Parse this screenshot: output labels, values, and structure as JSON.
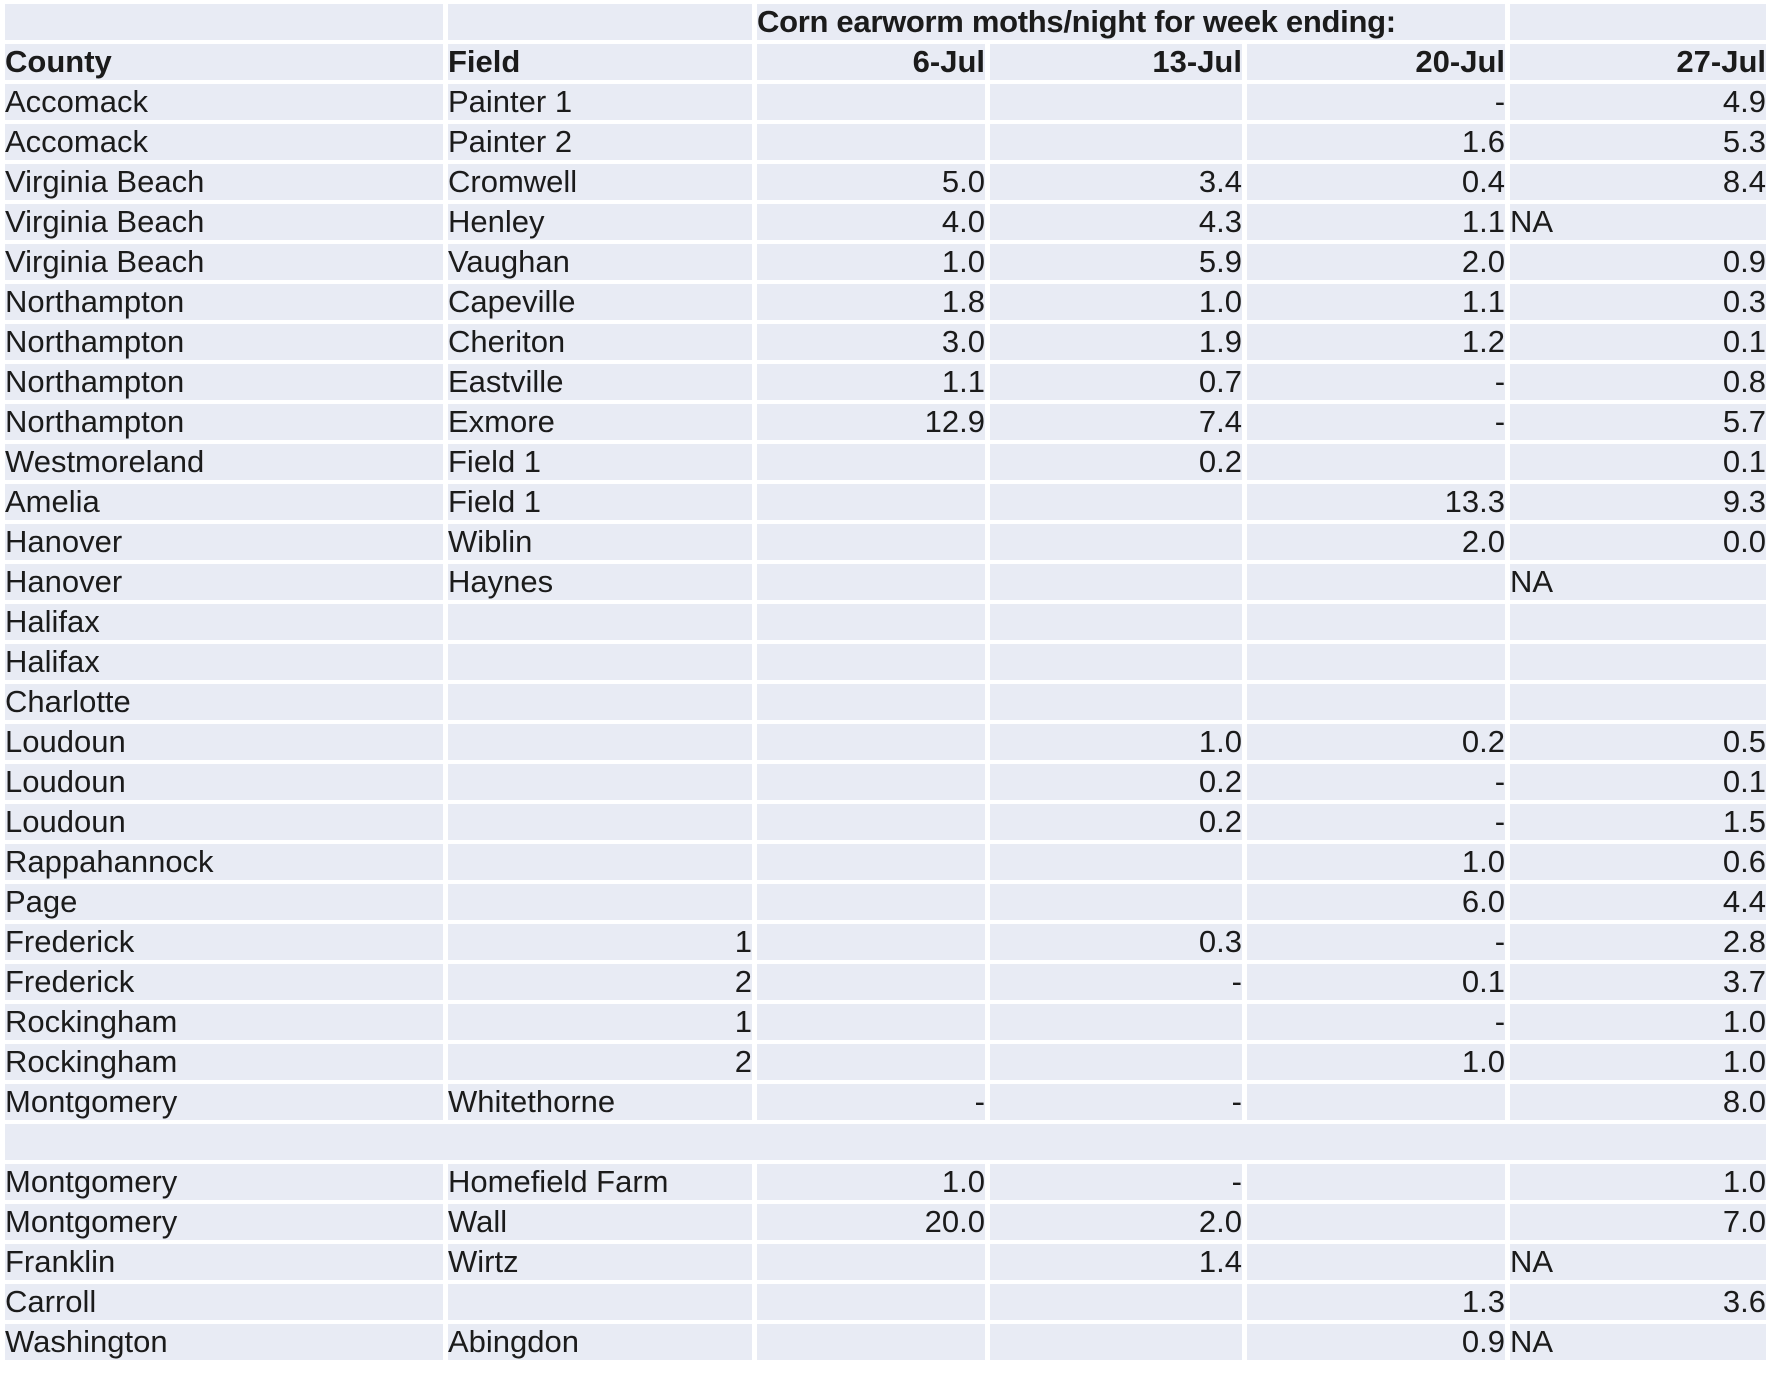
{
  "title": "Corn earworm moths/night for week ending:",
  "header": {
    "county_label": "County",
    "field_label": "Field",
    "date_labels": [
      "6-Jul",
      "13-Jul",
      "20-Jul",
      "27-Jul"
    ]
  },
  "colors": {
    "cell_background": "#e8ebf4",
    "gridline": "#ffffff",
    "text": "#1b1b1b"
  },
  "rows": [
    {
      "county": "Accomack",
      "field": "Painter 1",
      "vals": [
        "",
        "",
        "-",
        "4.9"
      ]
    },
    {
      "county": "Accomack",
      "field": "Painter 2",
      "vals": [
        "",
        "",
        "1.6",
        "5.3"
      ]
    },
    {
      "county": "Virginia Beach",
      "field": "Cromwell",
      "vals": [
        "5.0",
        "3.4",
        "0.4",
        "8.4"
      ]
    },
    {
      "county": "Virginia Beach",
      "field": "Henley",
      "vals": [
        "4.0",
        "4.3",
        "1.1",
        "NA"
      ]
    },
    {
      "county": "Virginia Beach",
      "field": "Vaughan",
      "vals": [
        "1.0",
        "5.9",
        "2.0",
        "0.9"
      ]
    },
    {
      "county": "Northampton",
      "field": "Capeville",
      "vals": [
        "1.8",
        "1.0",
        "1.1",
        "0.3"
      ]
    },
    {
      "county": "Northampton",
      "field": "Cheriton",
      "vals": [
        "3.0",
        "1.9",
        "1.2",
        "0.1"
      ]
    },
    {
      "county": "Northampton",
      "field": "Eastville",
      "vals": [
        "1.1",
        "0.7",
        "-",
        "0.8"
      ]
    },
    {
      "county": "Northampton",
      "field": "Exmore",
      "vals": [
        "12.9",
        "7.4",
        "-",
        "5.7"
      ]
    },
    {
      "county": "Westmoreland",
      "field": "Field 1",
      "vals": [
        "",
        "0.2",
        "",
        "0.1"
      ]
    },
    {
      "county": "Amelia",
      "field": "Field 1",
      "vals": [
        "",
        "",
        "13.3",
        "9.3"
      ]
    },
    {
      "county": "Hanover",
      "field": "Wiblin",
      "vals": [
        "",
        "",
        "2.0",
        "0.0"
      ]
    },
    {
      "county": "Hanover",
      "field": "Haynes",
      "vals": [
        "",
        "",
        "",
        "NA"
      ]
    },
    {
      "county": "Halifax",
      "field": "",
      "vals": [
        "",
        "",
        "",
        ""
      ]
    },
    {
      "county": "Halifax",
      "field": "",
      "vals": [
        "",
        "",
        "",
        ""
      ]
    },
    {
      "county": "Charlotte",
      "field": "",
      "vals": [
        "",
        "",
        "",
        ""
      ]
    },
    {
      "county": "Loudoun",
      "field": "",
      "vals": [
        "",
        "1.0",
        "0.2",
        "0.5"
      ]
    },
    {
      "county": "Loudoun",
      "field": "",
      "vals": [
        "",
        "0.2",
        "-",
        "0.1"
      ]
    },
    {
      "county": "Loudoun",
      "field": "",
      "vals": [
        "",
        "0.2",
        "-",
        "1.5"
      ]
    },
    {
      "county": "Rappahannock",
      "field": "",
      "vals": [
        "",
        "",
        "1.0",
        "0.6"
      ]
    },
    {
      "county": "Page",
      "field": "",
      "vals": [
        "",
        "",
        "6.0",
        "4.4"
      ]
    },
    {
      "county": "Frederick",
      "field": "1",
      "vals": [
        "",
        "0.3",
        "-",
        "2.8"
      ]
    },
    {
      "county": "Frederick",
      "field": "2",
      "vals": [
        "",
        "-",
        "0.1",
        "3.7"
      ]
    },
    {
      "county": "Rockingham",
      "field": "1",
      "vals": [
        "",
        "",
        "-",
        "1.0"
      ]
    },
    {
      "county": "Rockingham",
      "field": "2",
      "vals": [
        "",
        "",
        "1.0",
        "1.0"
      ]
    },
    {
      "county": "Montgomery",
      "field": "Whitethorne",
      "vals": [
        "-",
        "-",
        "",
        "8.0"
      ]
    },
    {
      "county": "Montgomery",
      "field": "Homefield Farm",
      "vals": [
        "1.0",
        "-",
        "",
        "1.0"
      ],
      "gap_above": true
    },
    {
      "county": "Montgomery",
      "field": "Wall",
      "vals": [
        "20.0",
        "2.0",
        "",
        "7.0"
      ]
    },
    {
      "county": "Franklin",
      "field": "Wirtz",
      "vals": [
        "",
        "1.4",
        "",
        "NA"
      ]
    },
    {
      "county": "Carroll",
      "field": "",
      "vals": [
        "",
        "",
        "1.3",
        "3.6"
      ]
    },
    {
      "county": "Washington",
      "field": "Abingdon",
      "vals": [
        "",
        "",
        "0.9",
        "NA"
      ]
    }
  ]
}
